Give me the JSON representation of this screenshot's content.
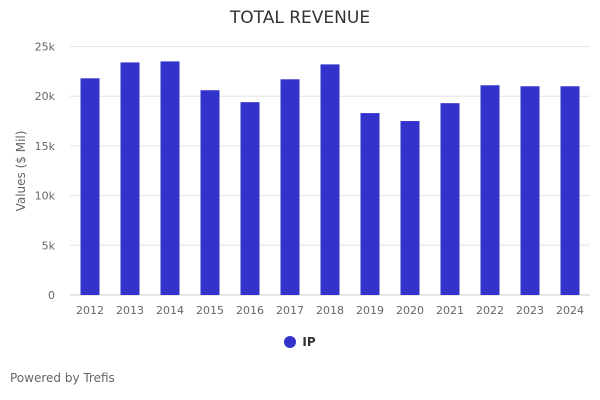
{
  "chart_data": {
    "type": "bar",
    "title": "TOTAL REVENUE",
    "ylabel": "Values ($ Mil)",
    "xlabel": "",
    "ylim": [
      0,
      25000
    ],
    "yticks": [
      0,
      5000,
      10000,
      15000,
      20000,
      25000
    ],
    "ytick_labels": [
      "0",
      "5k",
      "10k",
      "15k",
      "20k",
      "25k"
    ],
    "grid": true,
    "legend": "bottom",
    "categories": [
      "2012",
      "2013",
      "2014",
      "2015",
      "2016",
      "2017",
      "2018",
      "2019",
      "2020",
      "2021",
      "2022",
      "2023",
      "2024"
    ],
    "series": [
      {
        "name": "IP",
        "color": "#3333cc",
        "values": [
          21800,
          23400,
          23500,
          20600,
          19400,
          21700,
          23200,
          18300,
          17500,
          19300,
          21100,
          21000,
          21000
        ]
      }
    ]
  },
  "footer": {
    "credit": "Powered by Trefis"
  }
}
